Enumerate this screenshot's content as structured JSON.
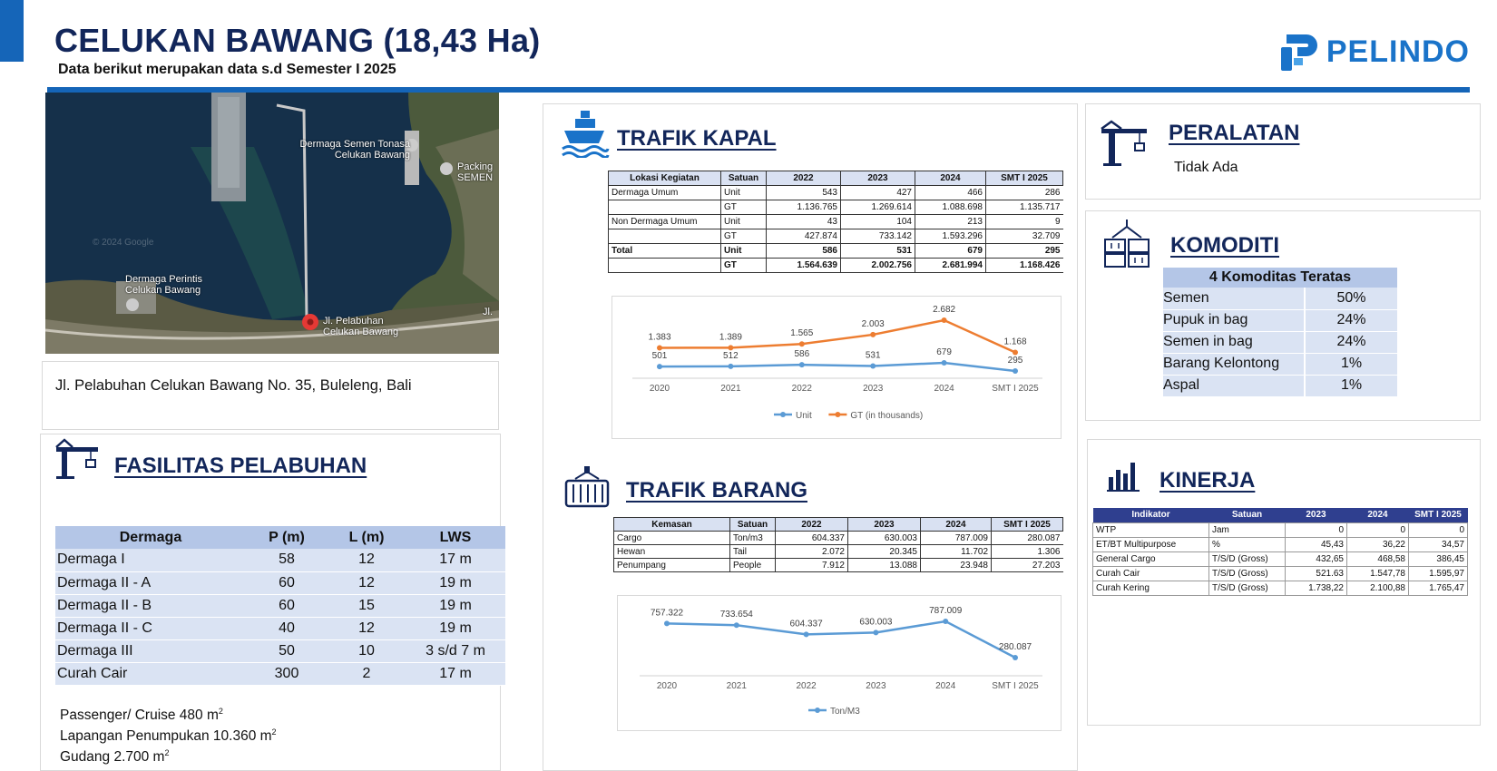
{
  "header": {
    "title": "CELUKAN BAWANG (18,43 Ha)",
    "subtitle": "Data berikut merupakan data s.d Semester I 2025",
    "logo_text": "PELINDO",
    "brand_color": "#1565b8",
    "title_color": "#12265a"
  },
  "map": {
    "label_semen": "Dermaga Semen Tonasa Celukan Bawang",
    "label_packing": "Packing SEMEN",
    "label_perintis": "Dermaga Perintis Celukan Bawang",
    "label_jl": "Jl. Pelabuhan Celukan Bawang",
    "label_edge": "Jl.",
    "watermark": "© 2024 Google"
  },
  "address": "Jl. Pelabuhan Celukan Bawang No. 35, Buleleng, Bali",
  "fasilitas": {
    "title": "FASILITAS PELABUHAN",
    "headers": [
      "Dermaga",
      "P (m)",
      "L (m)",
      "LWS"
    ],
    "rows": [
      [
        "Dermaga I",
        "58",
        "12",
        "17 m"
      ],
      [
        "Dermaga II - A",
        "60",
        "12",
        "19 m"
      ],
      [
        "Dermaga II - B",
        "60",
        "15",
        "19 m"
      ],
      [
        "Dermaga II - C",
        "40",
        "12",
        "19 m"
      ],
      [
        "Dermaga III",
        "50",
        "10",
        "3 s/d 7 m"
      ],
      [
        "Curah Cair",
        "300",
        "2",
        "17 m"
      ]
    ],
    "extra_1": "Passenger/ Cruise  480 m",
    "extra_2": "Lapangan Penumpukan 10.360 m",
    "extra_3": "Gudang 2.700 m",
    "sup": "2"
  },
  "trafik_kapal": {
    "title": "TRAFIK KAPAL",
    "headers": [
      "Lokasi Kegiatan",
      "Satuan",
      "2022",
      "2023",
      "2024",
      "SMT I 2025"
    ],
    "rows": [
      [
        "Dermaga Umum",
        "Unit",
        "543",
        "427",
        "466",
        "286"
      ],
      [
        "",
        "GT",
        "1.136.765",
        "1.269.614",
        "1.088.698",
        "1.135.717"
      ],
      [
        "Non Dermaga Umum",
        "Unit",
        "43",
        "104",
        "213",
        "9"
      ],
      [
        "",
        "GT",
        "427.874",
        "733.142",
        "1.593.296",
        "32.709"
      ],
      [
        "Total",
        "Unit",
        "586",
        "531",
        "679",
        "295"
      ],
      [
        "",
        "GT",
        "1.564.639",
        "2.002.756",
        "2.681.994",
        "1.168.426"
      ]
    ]
  },
  "trafik_barang": {
    "title": "TRAFIK BARANG",
    "headers": [
      "Kemasan",
      "Satuan",
      "2022",
      "2023",
      "2024",
      "SMT I 2025"
    ],
    "rows": [
      [
        "Cargo",
        "Ton/m3",
        "604.337",
        "630.003",
        "787.009",
        "280.087"
      ],
      [
        "Hewan",
        "Tail",
        "2.072",
        "20.345",
        "11.702",
        "1.306"
      ],
      [
        "Penumpang",
        "People",
        "7.912",
        "13.088",
        "23.948",
        "27.203"
      ]
    ]
  },
  "peralatan": {
    "title": "PERALATAN",
    "value": "Tidak Ada"
  },
  "komoditi": {
    "title": "KOMODITI",
    "header": "4 Komoditas Teratas",
    "rows": [
      [
        "Semen",
        "50%"
      ],
      [
        "Pupuk in bag",
        "24%"
      ],
      [
        "Semen in bag",
        "24%"
      ],
      [
        "Barang Kelontong",
        "1%"
      ],
      [
        "Aspal",
        "1%"
      ]
    ]
  },
  "kinerja": {
    "title": "KINERJA",
    "headers": [
      "Indikator",
      "Satuan",
      "2023",
      "2024",
      "SMT I 2025"
    ],
    "rows": [
      [
        "WTP",
        "Jam",
        "0",
        "0",
        "0"
      ],
      [
        "ET/BT Multipurpose",
        "%",
        "45,43",
        "36,22",
        "34,57"
      ],
      [
        "General Cargo",
        "T/S/D (Gross)",
        "432,65",
        "468,58",
        "386,45"
      ],
      [
        "Curah Cair",
        "T/S/D (Gross)",
        "521.63",
        "1.547,78",
        "1.595,97"
      ],
      [
        "Curah Kering",
        "T/S/D (Gross)",
        "1.738,22",
        "2.100,88",
        "1.765,47"
      ]
    ]
  },
  "chart_data": [
    {
      "type": "line",
      "x": [
        "2020",
        "2021",
        "2022",
        "2023",
        "2024",
        "SMT I 2025"
      ],
      "series": [
        {
          "name": "Unit",
          "values": [
            501,
            512,
            586,
            531,
            679,
            295
          ],
          "labels": [
            "501",
            "512",
            "586",
            "531",
            "679",
            "295"
          ],
          "color": "#5b9bd5"
        },
        {
          "name": "GT (in thousands)",
          "values": [
            1383,
            1389,
            1565,
            2003,
            2682,
            1168
          ],
          "labels": [
            "1.383",
            "1.389",
            "1.565",
            "2.003",
            "2.682",
            "1.168"
          ],
          "color": "#ed7d31"
        }
      ],
      "grid": false,
      "legend": "bottom"
    },
    {
      "type": "line",
      "x": [
        "2020",
        "2021",
        "2022",
        "2023",
        "2024",
        "SMT I 2025"
      ],
      "series": [
        {
          "name": "Ton/M3",
          "values": [
            757322,
            733654,
            604337,
            630003,
            787009,
            280087
          ],
          "labels": [
            "757.322",
            "733.654",
            "604.337",
            "630.003",
            "787.009",
            "280.087"
          ],
          "color": "#5b9bd5"
        }
      ],
      "grid": false,
      "legend": "bottom"
    }
  ]
}
